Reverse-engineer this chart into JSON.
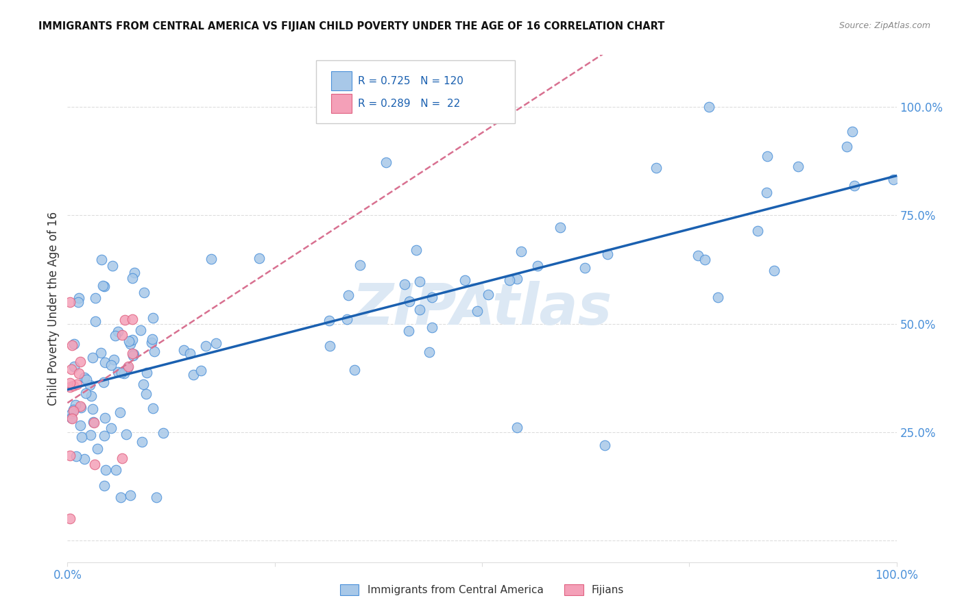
{
  "title": "IMMIGRANTS FROM CENTRAL AMERICA VS FIJIAN CHILD POVERTY UNDER THE AGE OF 16 CORRELATION CHART",
  "source": "Source: ZipAtlas.com",
  "ylabel": "Child Poverty Under the Age of 16",
  "legend_label1": "Immigrants from Central America",
  "legend_label2": "Fijians",
  "R1": 0.725,
  "N1": 120,
  "R2": 0.289,
  "N2": 22,
  "color_blue_fill": "#a8c8e8",
  "color_blue_edge": "#4a90d9",
  "color_pink_fill": "#f4a0b8",
  "color_pink_edge": "#e06080",
  "color_blue_line": "#1a60b0",
  "color_pink_line": "#d87090",
  "watermark_color": "#dce8f4",
  "watermark_text": "ZIPAtlas",
  "grid_color": "#dddddd",
  "title_color": "#111111",
  "axis_tick_color": "#4a90d9",
  "ylabel_color": "#333333"
}
